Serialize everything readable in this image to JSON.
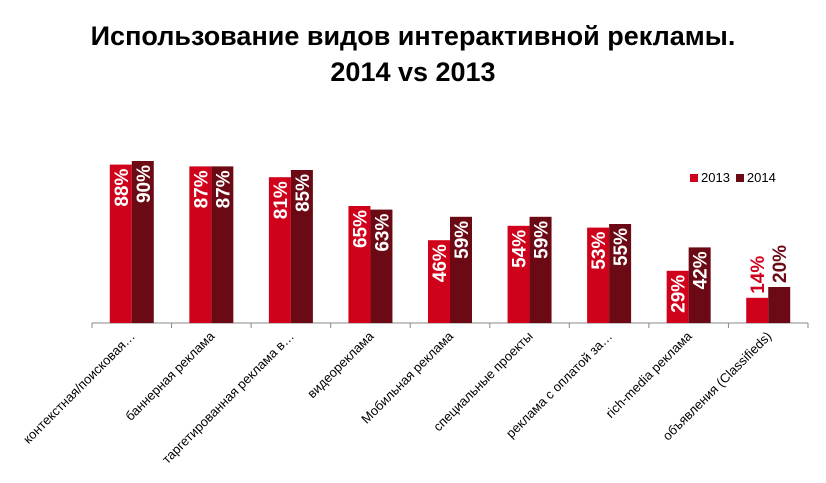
{
  "chart_data": {
    "type": "bar",
    "title_line1": "Использование видов интерактивной рекламы.",
    "title_line2": "2014 vs 2013",
    "categories": [
      "контекстная/поисковая…",
      "баннерная реклама",
      "таргетированная реклама в…",
      "видеореклама",
      "Мобильная реклама",
      "специальные проекты",
      "реклама с оплатой за…",
      "rich-media реклама",
      "объявления (Classifieds)"
    ],
    "series": [
      {
        "name": "2013",
        "color": "#d0021b",
        "values": [
          88,
          87,
          81,
          65,
          46,
          54,
          53,
          29,
          14
        ],
        "labels": [
          "88%",
          "87%",
          "81%",
          "65%",
          "46%",
          "54%",
          "53%",
          "29%",
          "14%"
        ]
      },
      {
        "name": "2014",
        "color": "#6b0a14",
        "values": [
          90,
          87,
          85,
          63,
          59,
          59,
          55,
          42,
          20
        ],
        "labels": [
          "90%",
          "87%",
          "85%",
          "63%",
          "59%",
          "59%",
          "55%",
          "42%",
          "20%"
        ]
      }
    ],
    "ylim": [
      0,
      100
    ],
    "legend_position": "top-right",
    "grid": false
  }
}
